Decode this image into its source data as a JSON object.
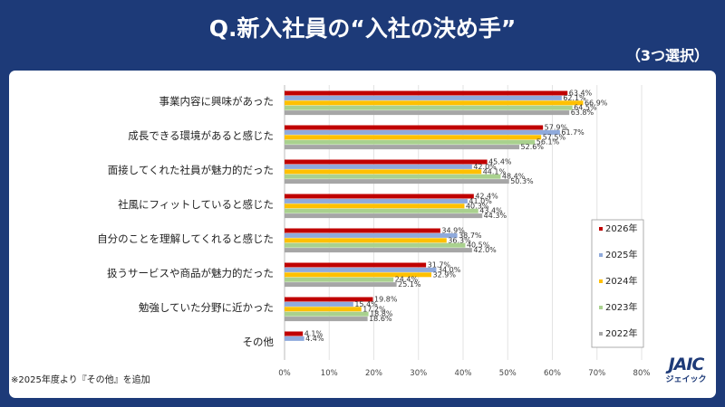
{
  "title": "Q.新入社員の“入社の決め手”",
  "subtitle": "（3つ選択）",
  "footnote": "※2025年度より『その他』を追加",
  "logo": {
    "mark": "JAIC",
    "sub": "ジェイック"
  },
  "chart_data": {
    "type": "bar",
    "orientation": "horizontal",
    "title": "Q.新入社員の“入社の決め手”",
    "categories": [
      "事業内容に興味があった",
      "成長できる環境があると感じた",
      "面接してくれた社員が魅力的だった",
      "社風にフィットしていると感じた",
      "自分のことを理解してくれると感じた",
      "扱うサービスや商品が魅力的だった",
      "勉強していた分野に近かった",
      "その他"
    ],
    "series": [
      {
        "name": "2026年",
        "color": "#c00000",
        "values": [
          63.4,
          57.9,
          45.4,
          42.4,
          34.9,
          31.7,
          19.8,
          4.1
        ]
      },
      {
        "name": "2025年",
        "color": "#8faadc",
        "values": [
          62.1,
          61.7,
          42.0,
          41.0,
          38.7,
          34.0,
          15.4,
          4.4
        ]
      },
      {
        "name": "2024年",
        "color": "#ffc000",
        "values": [
          66.9,
          57.5,
          44.1,
          40.3,
          36.3,
          32.9,
          17.2,
          null
        ]
      },
      {
        "name": "2023年",
        "color": "#a9d18e",
        "values": [
          64.5,
          56.1,
          48.4,
          43.4,
          40.5,
          24.4,
          18.8,
          null
        ]
      },
      {
        "name": "2022年",
        "color": "#a6a6a6",
        "values": [
          63.8,
          52.6,
          50.3,
          44.3,
          42.0,
          25.1,
          18.6,
          null
        ]
      }
    ],
    "xlim": [
      0,
      80
    ],
    "xticks": [
      "0%",
      "10%",
      "20%",
      "30%",
      "40%",
      "50%",
      "60%",
      "70%",
      "80%"
    ],
    "legend_position": "right",
    "grid": true
  }
}
